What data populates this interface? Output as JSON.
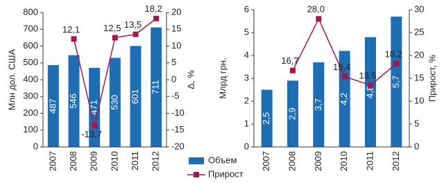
{
  "chart_data": [
    {
      "type": "bar-line",
      "y_label": "Млн дол. США",
      "y2_label": "Δ, %",
      "categories": [
        "2007",
        "2008",
        "2009",
        "2010",
        "2011",
        "2012"
      ],
      "series": [
        {
          "name": "Объем",
          "color": "#1f6db3",
          "values": [
            487,
            546,
            471,
            530,
            601,
            711
          ]
        },
        {
          "name": "Прирост",
          "color": "#a3174d",
          "axis": "y2",
          "values": [
            null,
            12.1,
            -13.7,
            12.5,
            13.5,
            18.2
          ],
          "value_labels": [
            null,
            "12,1",
            "-13,7",
            "12,5",
            "13,5",
            "18,2"
          ]
        }
      ],
      "ylim": [
        0,
        800
      ],
      "yticks": [
        0,
        100,
        200,
        300,
        400,
        500,
        600,
        700,
        800
      ],
      "y2lim": [
        -20,
        20
      ],
      "y2ticks": [
        -20,
        -15,
        -10,
        -5,
        0,
        5,
        10,
        15,
        20
      ]
    },
    {
      "type": "bar-line",
      "y_label": "Млрд грн.",
      "y2_label": "Прирост, %",
      "categories": [
        "2007",
        "2008",
        "2009",
        "2010",
        "2011",
        "2012"
      ],
      "series": [
        {
          "name": "Объем",
          "color": "#1f6db3",
          "values": [
            2.5,
            2.9,
            3.7,
            4.2,
            4.8,
            5.7
          ],
          "value_labels": [
            "2,5",
            "2,9",
            "3,7",
            "4,2",
            "4,8",
            "5,7"
          ]
        },
        {
          "name": "Прирост",
          "color": "#a3174d",
          "axis": "y2",
          "values": [
            null,
            16.7,
            28.0,
            15.4,
            13.5,
            18.2
          ],
          "value_labels": [
            null,
            "16,7",
            "28,0",
            "15,4",
            "13,5",
            "18,2"
          ]
        }
      ],
      "ylim": [
        0,
        6
      ],
      "yticks": [
        0,
        1,
        2,
        3,
        4,
        5,
        6
      ],
      "y2lim": [
        0,
        30
      ],
      "y2ticks": [
        0,
        5,
        10,
        15,
        20,
        25,
        30
      ]
    }
  ]
}
